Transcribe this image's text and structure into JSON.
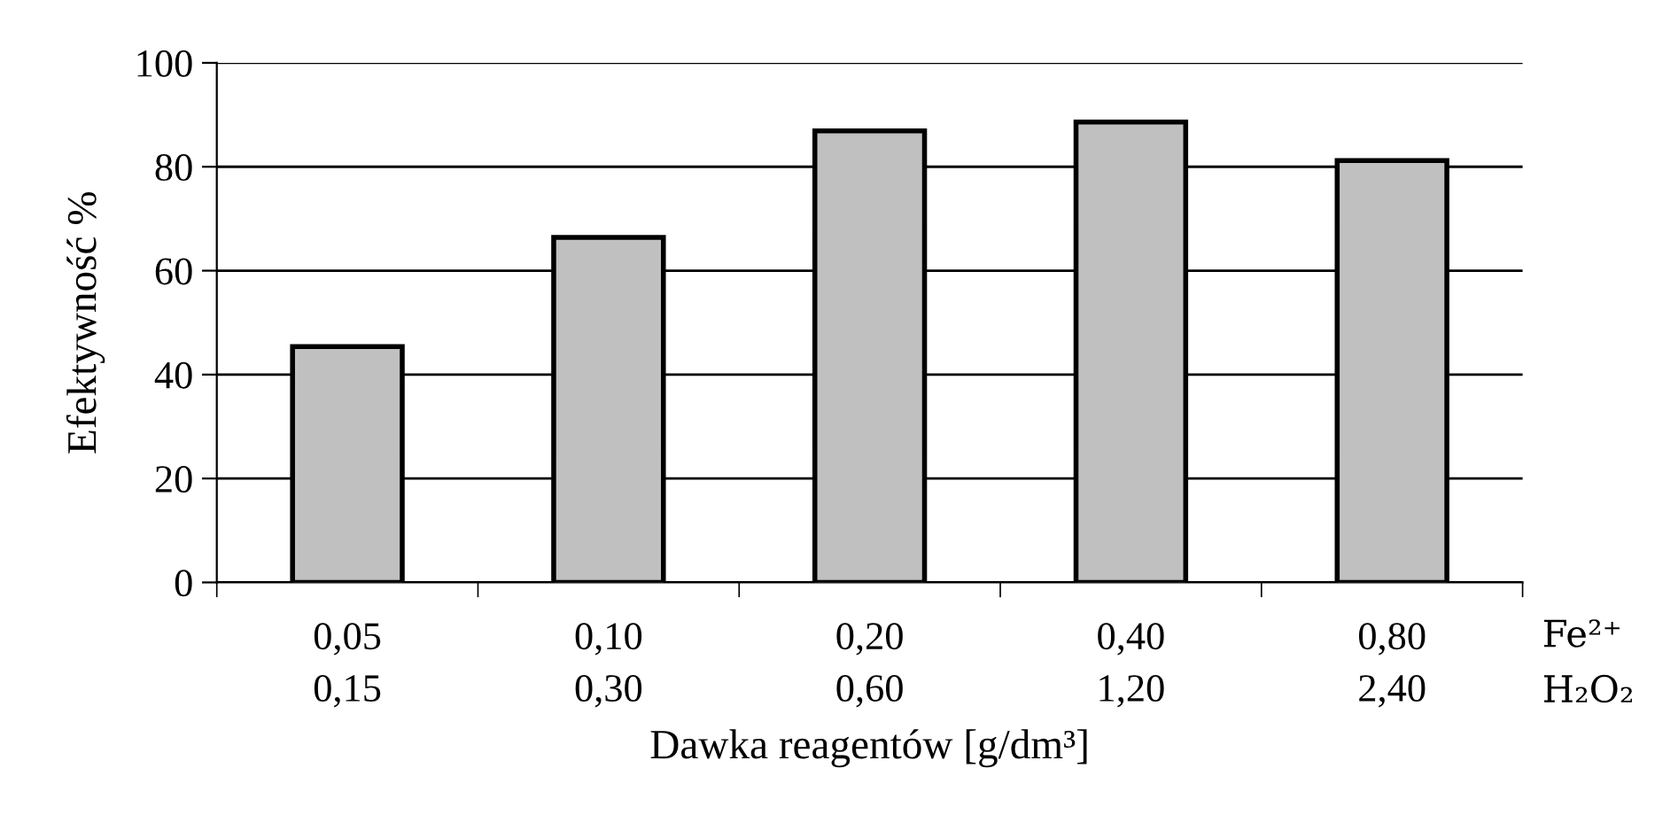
{
  "chart_data": {
    "type": "bar",
    "ylabel": "Efektywność %",
    "xlabel": "Dawka reagentów [g/dm³]",
    "categories": [
      "0,05\n0,15",
      "0,10\n0,30",
      "0,20\n0,60",
      "0,40\n1,20",
      "0,80\n2,40"
    ],
    "values": [
      45.4,
      66.4,
      86.9,
      88.6,
      81.2
    ],
    "color": "#c0c0c0",
    "ylim": [
      0,
      100
    ],
    "yticks": [
      0,
      20,
      40,
      60,
      80,
      100
    ],
    "grid": "y",
    "annotations": [
      "Fe²⁺\nH₂O₂"
    ]
  }
}
